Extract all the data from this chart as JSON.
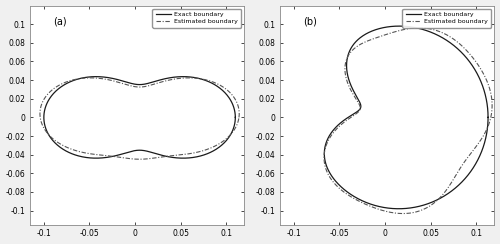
{
  "title_a": "(a)",
  "title_b": "(b)",
  "xlim": [
    -0.115,
    0.12
  ],
  "ylim": [
    -0.115,
    0.12
  ],
  "xticks": [
    -0.1,
    -0.05,
    0,
    0.05,
    0.1
  ],
  "yticks": [
    -0.1,
    -0.08,
    -0.06,
    -0.04,
    -0.02,
    0,
    0.02,
    0.04,
    0.06,
    0.08,
    0.1
  ],
  "exact_color": "#1a1a1a",
  "estimated_color": "#555555",
  "exact_lw": 0.9,
  "estimated_lw": 0.8,
  "legend_labels": [
    "Exact boundary",
    "Estimated boundary"
  ],
  "background_color": "#f0f0f0",
  "fig_color": "#f0f0f0"
}
